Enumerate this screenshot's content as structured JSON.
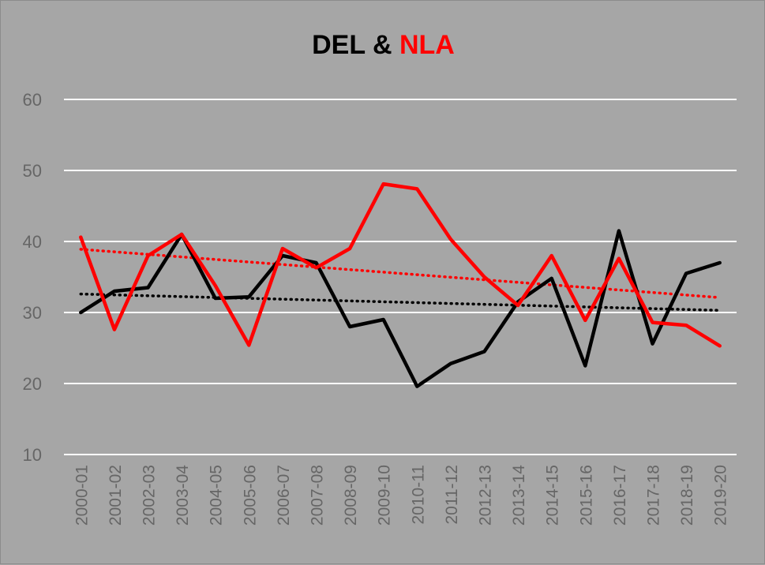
{
  "title": {
    "part1": "DEL & ",
    "part2": "NLA"
  },
  "colors": {
    "background": "#a6a6a6",
    "grid": "#ffffff",
    "tick_text": "#666666",
    "del": "#000000",
    "nla": "#ff0000"
  },
  "chart_data": {
    "type": "line",
    "title": "DEL & NLA",
    "xlabel": "",
    "ylabel": "",
    "ylim": [
      10,
      60
    ],
    "yticks": [
      10,
      20,
      30,
      40,
      50,
      60
    ],
    "grid": true,
    "legend": "none",
    "categories": [
      "2000-01",
      "2001-02",
      "2002-03",
      "2003-04",
      "2004-05",
      "2005-06",
      "2006-07",
      "2007-08",
      "2008-09",
      "2009-10",
      "2010-11",
      "2011-12",
      "2012-13",
      "2013-14",
      "2014-15",
      "2015-16",
      "2016-17",
      "2017-18",
      "2018-19",
      "2019-20"
    ],
    "series": [
      {
        "color": "#000000",
        "style": "solid",
        "values": [
          30.0,
          33.0,
          33.5,
          41.0,
          32.0,
          32.2,
          38.0,
          37.0,
          28.0,
          29.0,
          19.6,
          22.8,
          24.5,
          31.5,
          34.8,
          22.5,
          41.5,
          25.6,
          35.5,
          37.0
        ]
      },
      {
        "color": "#ff0000",
        "style": "solid",
        "values": [
          40.6,
          27.6,
          38.0,
          41.0,
          33.8,
          25.4,
          39.0,
          36.3,
          39.0,
          48.1,
          47.4,
          40.3,
          35.0,
          31.0,
          38.0,
          28.9,
          37.6,
          28.6,
          28.2,
          25.3
        ]
      }
    ],
    "trendlines": [
      {
        "color": "#000000",
        "style": "dotted",
        "start": 32.6,
        "end": 30.3
      },
      {
        "color": "#ff0000",
        "style": "dotted",
        "start": 38.9,
        "end": 32.1
      }
    ]
  }
}
